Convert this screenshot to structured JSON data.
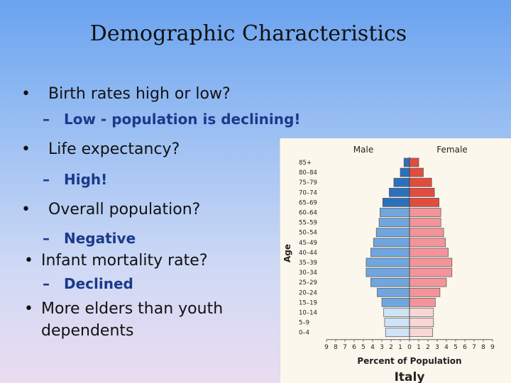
{
  "slide": {
    "title": "Demographic Characteristics",
    "bullets": [
      {
        "text": "Birth rates high or low?",
        "sub": "Low - population is declining!"
      },
      {
        "text": "Life expectancy?",
        "sub": "High!"
      },
      {
        "text": "Overall population?",
        "sub": "Negative"
      },
      {
        "text": "Infant mortality rate?",
        "sub": "Declined"
      },
      {
        "text": "More elders than youth dependents"
      }
    ]
  },
  "colors": {
    "male_old": "#2c6fbf",
    "male_mid": "#6fa6e0",
    "male_young": "#cfe3f6",
    "female_old": "#e14c3f",
    "female_mid": "#f3949b",
    "female_young": "#f9d6d6"
  },
  "chart_data": {
    "type": "bar",
    "title": "Italy",
    "xlabel": "Percent of Population",
    "ylabel": "Age",
    "legend": [
      "Male",
      "Female"
    ],
    "x_ticks": [
      "9",
      "8",
      "7",
      "6",
      "5",
      "4",
      "3",
      "2",
      "1",
      "0",
      "1",
      "2",
      "3",
      "4",
      "5",
      "6",
      "7",
      "8",
      "9"
    ],
    "xlim": [
      -9,
      9
    ],
    "categories": [
      "0–4",
      "5–9",
      "10–14",
      "15–19",
      "20–24",
      "25–29",
      "30–34",
      "35–39",
      "40–44",
      "45–49",
      "50–54",
      "55–59",
      "60–64",
      "65–69",
      "70–74",
      "75–79",
      "80–84",
      "85+"
    ],
    "series": [
      {
        "name": "Male",
        "values": [
          2.6,
          2.7,
          2.8,
          3.0,
          3.5,
          4.2,
          4.7,
          4.7,
          4.2,
          3.9,
          3.6,
          3.3,
          3.2,
          2.9,
          2.2,
          1.7,
          1.0,
          0.6
        ]
      },
      {
        "name": "Female",
        "values": [
          2.5,
          2.6,
          2.6,
          2.8,
          3.3,
          4.0,
          4.6,
          4.6,
          4.2,
          3.9,
          3.7,
          3.4,
          3.4,
          3.2,
          2.7,
          2.4,
          1.5,
          1.0
        ]
      }
    ]
  }
}
